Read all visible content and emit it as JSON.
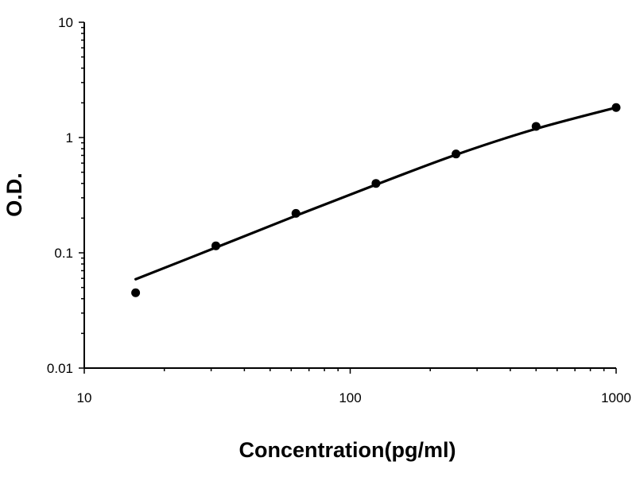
{
  "chart_data": {
    "type": "scatter",
    "title": "",
    "xlabel": "Concentration(pg/ml)",
    "ylabel": "O.D.",
    "x_scale": "log",
    "y_scale": "log",
    "xlim": [
      10,
      1000
    ],
    "ylim": [
      0.01,
      10
    ],
    "x_tick_labels": [
      "10",
      "100",
      "1000"
    ],
    "y_tick_labels": [
      "10",
      "1",
      "0.1",
      "0.01"
    ],
    "x_ticks": [
      10,
      100,
      1000
    ],
    "y_ticks": [
      10,
      1,
      0.1,
      0.01
    ],
    "grid": false,
    "legend": "none",
    "series": [
      {
        "kind": "points",
        "x": [
          15.6,
          31.25,
          62.5,
          125,
          250,
          500,
          1000
        ],
        "y": [
          0.045,
          0.115,
          0.22,
          0.4,
          0.72,
          1.25,
          1.82
        ]
      },
      {
        "kind": "fitted-curve",
        "x": [
          15.6,
          31.25,
          62.5,
          125,
          250,
          500,
          1000
        ],
        "y": [
          0.059,
          0.111,
          0.21,
          0.39,
          0.71,
          1.19,
          1.82
        ]
      }
    ],
    "colors": {
      "axis": "#000000",
      "marker": "#000000",
      "curve": "#000000"
    }
  }
}
